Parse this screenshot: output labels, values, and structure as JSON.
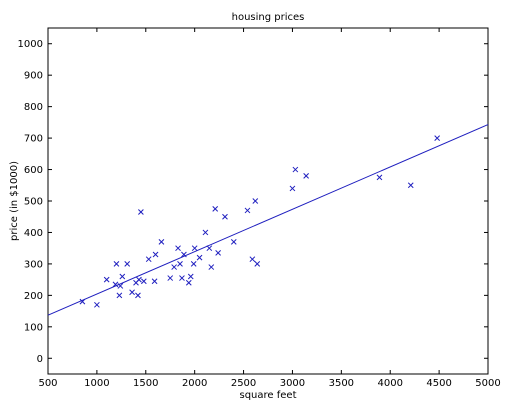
{
  "chart_data": {
    "type": "scatter",
    "title": "housing prices",
    "xlabel": "square feet",
    "ylabel": "price (in $1000)",
    "xlim": [
      500,
      5000
    ],
    "ylim": [
      -50,
      1050
    ],
    "xticks": [
      500,
      1000,
      1500,
      2000,
      2500,
      3000,
      3500,
      4000,
      4500,
      5000
    ],
    "yticks": [
      0,
      100,
      200,
      300,
      400,
      500,
      600,
      700,
      800,
      900,
      1000
    ],
    "xtick_labels": [
      "500",
      "1000",
      "1500",
      "2000",
      "2500",
      "3000",
      "3500",
      "4000",
      "4500",
      "5000"
    ],
    "ytick_labels": [
      "0",
      "100",
      "200",
      "300",
      "400",
      "500",
      "600",
      "700",
      "800",
      "900",
      "1000"
    ],
    "grid": false,
    "marker": "x",
    "color": "#1f1fbf",
    "series": [
      {
        "points": [
          [
            852,
            180
          ],
          [
            1000,
            170
          ],
          [
            1100,
            250
          ],
          [
            1190,
            235
          ],
          [
            1200,
            300
          ],
          [
            1230,
            200
          ],
          [
            1240,
            230
          ],
          [
            1260,
            260
          ],
          [
            1310,
            300
          ],
          [
            1360,
            210
          ],
          [
            1400,
            240
          ],
          [
            1420,
            200
          ],
          [
            1430,
            250
          ],
          [
            1450,
            465
          ],
          [
            1480,
            245
          ],
          [
            1530,
            315
          ],
          [
            1590,
            245
          ],
          [
            1600,
            330
          ],
          [
            1660,
            370
          ],
          [
            1750,
            255
          ],
          [
            1790,
            290
          ],
          [
            1830,
            350
          ],
          [
            1850,
            300
          ],
          [
            1870,
            255
          ],
          [
            1890,
            330
          ],
          [
            1940,
            240
          ],
          [
            1960,
            260
          ],
          [
            1990,
            300
          ],
          [
            2000,
            350
          ],
          [
            2050,
            320
          ],
          [
            2110,
            400
          ],
          [
            2150,
            350
          ],
          [
            2170,
            290
          ],
          [
            2210,
            475
          ],
          [
            2240,
            335
          ],
          [
            2310,
            450
          ],
          [
            2400,
            370
          ],
          [
            2540,
            470
          ],
          [
            2590,
            315
          ],
          [
            2620,
            500
          ],
          [
            2640,
            300
          ],
          [
            3000,
            540
          ],
          [
            3030,
            600
          ],
          [
            3140,
            580
          ],
          [
            3890,
            575
          ],
          [
            4210,
            550
          ],
          [
            4480,
            700
          ]
        ]
      }
    ],
    "fit_line": {
      "x": [
        500,
        5000
      ],
      "y": [
        137,
        743
      ]
    }
  }
}
